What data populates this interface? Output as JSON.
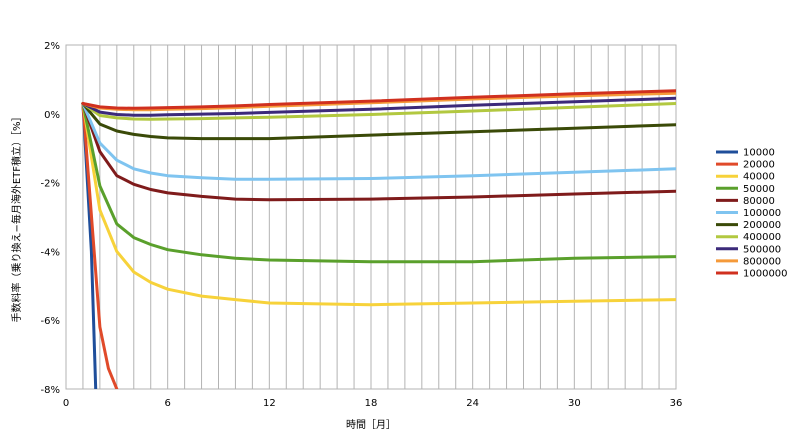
{
  "chart_data": {
    "type": "line",
    "title": "",
    "xlabel": "時間［月］",
    "ylabel": "手数料率（乗り換え−毎月海外ETF積立）［%］",
    "xlim": [
      0,
      36
    ],
    "ylim": [
      -8,
      2
    ],
    "x_ticks": [
      0,
      6,
      12,
      18,
      24,
      30,
      36
    ],
    "x_tick_labels": [
      "0",
      "6",
      "12",
      "18",
      "24",
      "30",
      "36"
    ],
    "y_ticks": [
      -8,
      -6,
      -4,
      -2,
      0,
      2
    ],
    "y_tick_labels": [
      "-8%",
      "-6%",
      "-4%",
      "-2%",
      "0%",
      "2%"
    ],
    "grid": {
      "vertical": "every month",
      "horizontal": "none"
    },
    "legend_position": "right",
    "series": [
      {
        "name": "10000",
        "color": "#1f4e9a",
        "x": [
          1,
          1.5,
          1.75
        ],
        "y": [
          0.3,
          -4.0,
          -8.0
        ]
      },
      {
        "name": "20000",
        "color": "#e04a2a",
        "x": [
          1,
          2,
          2.5,
          3
        ],
        "y": [
          0.3,
          -6.2,
          -7.4,
          -8.0
        ]
      },
      {
        "name": "40000",
        "color": "#f7d23a",
        "x": [
          1,
          2,
          3,
          4,
          5,
          6,
          8,
          10,
          12,
          18,
          24,
          30,
          36
        ],
        "y": [
          0.3,
          -2.8,
          -4.0,
          -4.6,
          -4.9,
          -5.1,
          -5.3,
          -5.4,
          -5.5,
          -5.55,
          -5.5,
          -5.45,
          -5.4
        ]
      },
      {
        "name": "50000",
        "color": "#5aa02c",
        "x": [
          1,
          2,
          3,
          4,
          5,
          6,
          8,
          10,
          12,
          18,
          24,
          30,
          36
        ],
        "y": [
          0.3,
          -2.1,
          -3.2,
          -3.6,
          -3.8,
          -3.95,
          -4.1,
          -4.2,
          -4.25,
          -4.3,
          -4.3,
          -4.2,
          -4.15
        ]
      },
      {
        "name": "80000",
        "color": "#7f1b1b",
        "x": [
          1,
          2,
          3,
          4,
          5,
          6,
          8,
          10,
          12,
          18,
          24,
          30,
          36
        ],
        "y": [
          0.3,
          -1.1,
          -1.8,
          -2.05,
          -2.2,
          -2.3,
          -2.4,
          -2.48,
          -2.5,
          -2.48,
          -2.42,
          -2.33,
          -2.25
        ]
      },
      {
        "name": "100000",
        "color": "#7fc4f0",
        "x": [
          1,
          2,
          3,
          4,
          5,
          6,
          8,
          10,
          12,
          18,
          24,
          30,
          36
        ],
        "y": [
          0.3,
          -0.85,
          -1.35,
          -1.6,
          -1.72,
          -1.8,
          -1.86,
          -1.9,
          -1.9,
          -1.88,
          -1.8,
          -1.7,
          -1.6
        ]
      },
      {
        "name": "200000",
        "color": "#3a4a08",
        "x": [
          1,
          2,
          3,
          4,
          5,
          6,
          8,
          10,
          12,
          18,
          24,
          30,
          36
        ],
        "y": [
          0.3,
          -0.3,
          -0.5,
          -0.6,
          -0.66,
          -0.7,
          -0.72,
          -0.72,
          -0.72,
          -0.62,
          -0.52,
          -0.42,
          -0.32
        ]
      },
      {
        "name": "400000",
        "color": "#b2c840",
        "x": [
          1,
          2,
          3,
          4,
          5,
          6,
          8,
          10,
          12,
          18,
          24,
          30,
          36
        ],
        "y": [
          0.3,
          -0.05,
          -0.12,
          -0.15,
          -0.16,
          -0.15,
          -0.14,
          -0.12,
          -0.1,
          -0.02,
          0.08,
          0.19,
          0.3
        ]
      },
      {
        "name": "500000",
        "color": "#3c2a7a",
        "x": [
          1,
          2,
          3,
          4,
          5,
          6,
          8,
          10,
          12,
          18,
          24,
          30,
          36
        ],
        "y": [
          0.3,
          0.05,
          -0.02,
          -0.04,
          -0.04,
          -0.03,
          -0.01,
          0.01,
          0.04,
          0.13,
          0.25,
          0.35,
          0.45
        ]
      },
      {
        "name": "800000",
        "color": "#f59a3a",
        "x": [
          1,
          2,
          3,
          4,
          5,
          6,
          8,
          10,
          12,
          18,
          24,
          30,
          36
        ],
        "y": [
          0.3,
          0.17,
          0.13,
          0.12,
          0.12,
          0.13,
          0.15,
          0.18,
          0.22,
          0.32,
          0.43,
          0.52,
          0.6
        ]
      },
      {
        "name": "1000000",
        "color": "#d0301f",
        "x": [
          1,
          2,
          3,
          4,
          5,
          6,
          8,
          10,
          12,
          18,
          24,
          30,
          36
        ],
        "y": [
          0.3,
          0.2,
          0.17,
          0.16,
          0.17,
          0.18,
          0.2,
          0.23,
          0.27,
          0.37,
          0.48,
          0.58,
          0.67
        ]
      }
    ]
  }
}
